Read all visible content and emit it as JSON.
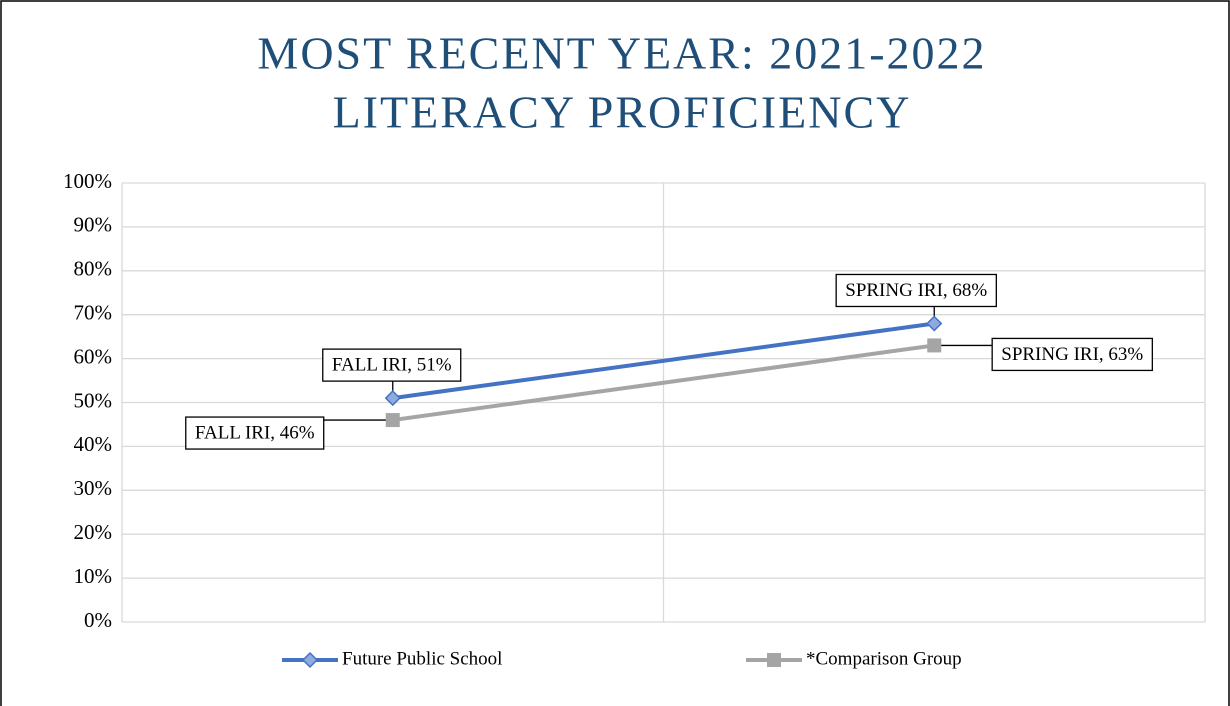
{
  "chart_data": {
    "type": "line",
    "title": [
      "MOST RECENT YEAR: 2021-2022",
      "LITERACY PROFICIENCY"
    ],
    "categories": [
      null,
      null
    ],
    "series": [
      {
        "name": "Future Public School",
        "color": "#4472c4",
        "marker": "diamond",
        "values": [
          51,
          68
        ],
        "value_labels": [
          "FALL IRI, 51%",
          "SPRING IRI, 68%"
        ]
      },
      {
        "name": "*Comparison Group",
        "color": "#a5a5a5",
        "marker": "square",
        "values": [
          46,
          63
        ],
        "value_labels": [
          "FALL IRI, 46%",
          "SPRING IRI, 63%"
        ]
      }
    ],
    "ylim": [
      0,
      100
    ],
    "yticks": [
      {
        "value": 0,
        "label": "0%"
      },
      {
        "value": 10,
        "label": "10%"
      },
      {
        "value": 20,
        "label": "20%"
      },
      {
        "value": 30,
        "label": "30%"
      },
      {
        "value": 40,
        "label": "40%"
      },
      {
        "value": 50,
        "label": "50%"
      },
      {
        "value": 60,
        "label": "60%"
      },
      {
        "value": 70,
        "label": "70%"
      },
      {
        "value": 80,
        "label": "80%"
      },
      {
        "value": 90,
        "label": "90%"
      },
      {
        "value": 100,
        "label": "100%"
      }
    ],
    "grid": true,
    "legend": "bottom"
  }
}
